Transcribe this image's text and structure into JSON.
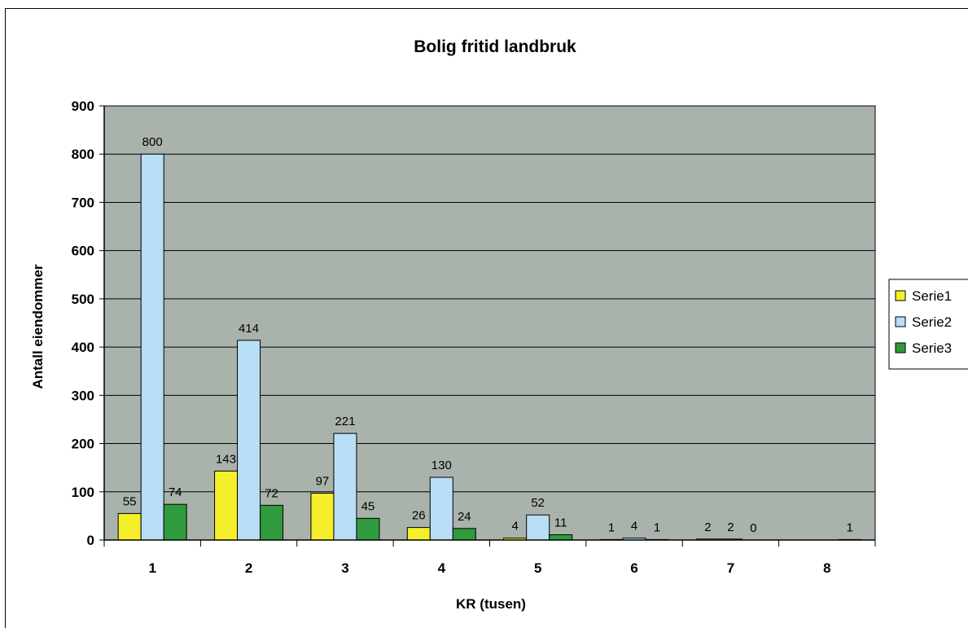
{
  "chart_data": {
    "type": "bar",
    "title": "Bolig fritid landbruk",
    "xlabel": "KR (tusen)",
    "ylabel": "Antall eiendommer",
    "categories": [
      "1",
      "2",
      "3",
      "4",
      "5",
      "6",
      "7",
      "8"
    ],
    "ylim": [
      0,
      900
    ],
    "yticks": [
      0,
      100,
      200,
      300,
      400,
      500,
      600,
      700,
      800,
      900
    ],
    "grid": true,
    "legend_position": "right",
    "series": [
      {
        "name": "Serie1",
        "color": "#f5ee2a",
        "values": [
          55,
          143,
          97,
          26,
          4,
          1,
          2,
          null
        ],
        "labels": [
          "55",
          "143",
          "97",
          "26",
          "4",
          "1",
          "2",
          ""
        ]
      },
      {
        "name": "Serie2",
        "color": "#b7def5",
        "values": [
          800,
          414,
          221,
          130,
          52,
          4,
          2,
          null
        ],
        "labels": [
          "800",
          "414",
          "221",
          "130",
          "52",
          "4",
          "2",
          ""
        ]
      },
      {
        "name": "Serie3",
        "color": "#2f9a3e",
        "values": [
          74,
          72,
          45,
          24,
          11,
          1,
          0,
          1
        ],
        "labels": [
          "74",
          "72",
          "45",
          "24",
          "11",
          "1",
          "0",
          "1"
        ]
      }
    ],
    "plot_background": "#a9b2ab"
  }
}
